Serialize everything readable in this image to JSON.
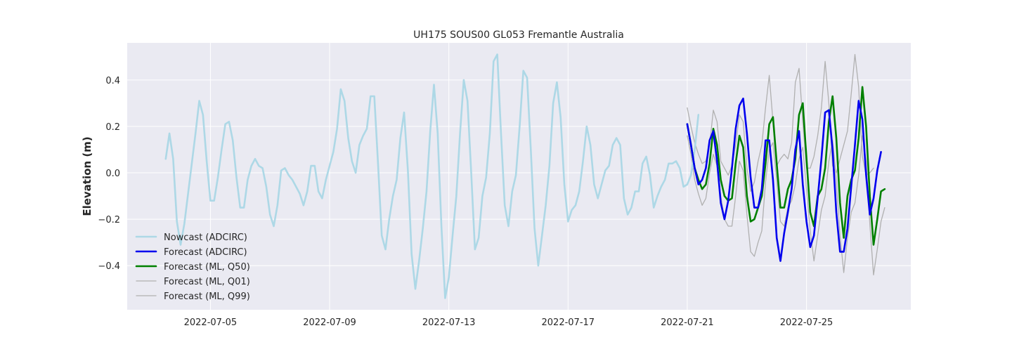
{
  "chart_data": {
    "type": "line",
    "title": "UH175 SOUS00 GL053 Fremantle Australia",
    "xlabel": "",
    "ylabel": "Elevation (m)",
    "xlim": [
      "2022-07-02T05:00",
      "2022-07-28T12:00"
    ],
    "ylim": [
      -0.59,
      0.56
    ],
    "x_ticks": [
      "2022-07-05",
      "2022-07-09",
      "2022-07-13",
      "2022-07-17",
      "2022-07-21",
      "2022-07-25"
    ],
    "y_ticks": [
      -0.4,
      -0.2,
      0.0,
      0.2,
      0.4
    ],
    "y_tick_labels": [
      "−0.4",
      "−0.2",
      "0.0",
      "0.2",
      "0.4"
    ],
    "grid": true,
    "legend_position": "lower-left",
    "colors": {
      "background": "#eaeaf2",
      "grid": "#ffffff",
      "nowcast": "#add8e6",
      "forecast_adcirc": "#0000ee",
      "forecast_q50": "#008000",
      "forecast_q01": "#b0b0b0",
      "forecast_q99": "#b0b0b0"
    },
    "series": [
      {
        "name": "Nowcast (ADCIRC)",
        "key": "nowcast",
        "start": "2022-07-03T12:00",
        "step_hours": 3,
        "width": 2.6,
        "values": [
          0.06,
          0.17,
          0.06,
          -0.21,
          -0.31,
          -0.22,
          -0.09,
          0.04,
          0.17,
          0.31,
          0.25,
          0.05,
          -0.12,
          -0.12,
          -0.02,
          0.1,
          0.21,
          0.22,
          0.14,
          -0.02,
          -0.15,
          -0.15,
          -0.03,
          0.03,
          0.06,
          0.03,
          0.02,
          -0.06,
          -0.18,
          -0.23,
          -0.14,
          0.01,
          0.02,
          -0.01,
          -0.03,
          -0.06,
          -0.09,
          -0.14,
          -0.08,
          0.03,
          0.03,
          -0.08,
          -0.11,
          -0.03,
          0.03,
          0.09,
          0.19,
          0.36,
          0.31,
          0.15,
          0.05,
          0.0,
          0.12,
          0.16,
          0.19,
          0.33,
          0.33,
          0.04,
          -0.27,
          -0.33,
          -0.2,
          -0.1,
          -0.03,
          0.15,
          0.26,
          0.01,
          -0.35,
          -0.5,
          -0.38,
          -0.24,
          -0.08,
          0.18,
          0.38,
          0.17,
          -0.23,
          -0.54,
          -0.45,
          -0.27,
          -0.1,
          0.17,
          0.4,
          0.31,
          0.0,
          -0.33,
          -0.28,
          -0.1,
          -0.02,
          0.17,
          0.48,
          0.51,
          0.17,
          -0.14,
          -0.23,
          -0.08,
          -0.01,
          0.2,
          0.44,
          0.41,
          0.1,
          -0.24,
          -0.4,
          -0.27,
          -0.14,
          0.03,
          0.3,
          0.39,
          0.24,
          -0.05,
          -0.21,
          -0.16,
          -0.14,
          -0.08,
          0.05,
          0.2,
          0.12,
          -0.05,
          -0.11,
          -0.05,
          0.01,
          0.03,
          0.12,
          0.15,
          0.12,
          -0.11,
          -0.18,
          -0.15,
          -0.08,
          -0.08,
          0.04,
          0.07,
          -0.01,
          -0.15,
          -0.1,
          -0.06,
          -0.03,
          0.04,
          0.04,
          0.05,
          0.02,
          -0.06,
          -0.05,
          -0.01,
          0.1,
          0.25
        ]
      },
      {
        "name": "Forecast (ADCIRC)",
        "key": "forecast_adcirc",
        "start": "2022-07-21T00:00",
        "step_hours": 3,
        "width": 2.6,
        "values": [
          0.21,
          0.12,
          0.02,
          -0.05,
          -0.03,
          0.02,
          0.14,
          0.18,
          0.05,
          -0.13,
          -0.2,
          -0.12,
          0.02,
          0.19,
          0.29,
          0.32,
          0.17,
          -0.02,
          -0.15,
          -0.15,
          -0.07,
          0.14,
          0.14,
          -0.03,
          -0.28,
          -0.38,
          -0.26,
          -0.17,
          -0.07,
          0.1,
          0.18,
          -0.05,
          -0.21,
          -0.32,
          -0.27,
          -0.11,
          0.06,
          0.26,
          0.27,
          0.1,
          -0.17,
          -0.34,
          -0.34,
          -0.24,
          -0.06,
          0.12,
          0.31,
          0.23,
          -0.01,
          -0.18,
          -0.11,
          0.01,
          0.09
        ]
      },
      {
        "name": "Forecast (ML, Q50)",
        "key": "forecast_q50",
        "start": "2022-07-21T00:00",
        "step_hours": 3,
        "width": 2.6,
        "values": [
          0.21,
          0.12,
          0.02,
          -0.03,
          -0.07,
          -0.05,
          0.04,
          0.19,
          0.12,
          -0.03,
          -0.1,
          -0.12,
          -0.11,
          0.04,
          0.16,
          0.11,
          -0.1,
          -0.21,
          -0.2,
          -0.15,
          -0.1,
          0.04,
          0.21,
          0.24,
          0.04,
          -0.15,
          -0.15,
          -0.07,
          -0.03,
          0.06,
          0.25,
          0.3,
          0.06,
          -0.17,
          -0.23,
          -0.1,
          -0.07,
          0.02,
          0.22,
          0.33,
          0.15,
          -0.13,
          -0.28,
          -0.1,
          -0.03,
          0.01,
          0.15,
          0.37,
          0.2,
          -0.1,
          -0.31,
          -0.2,
          -0.08,
          -0.07
        ]
      },
      {
        "name": "Forecast (ML, Q01)",
        "key": "forecast_q01",
        "start": "2022-07-21T00:00",
        "step_hours": 3,
        "width": 1.3,
        "values": [
          0.16,
          0.08,
          -0.03,
          -0.09,
          -0.14,
          -0.11,
          0.0,
          0.08,
          0.03,
          -0.1,
          -0.2,
          -0.23,
          -0.23,
          -0.1,
          0.05,
          0.01,
          -0.18,
          -0.34,
          -0.36,
          -0.3,
          -0.25,
          -0.04,
          0.1,
          0.13,
          -0.03,
          -0.21,
          -0.23,
          -0.15,
          -0.12,
          -0.05,
          0.06,
          0.11,
          -0.07,
          -0.25,
          -0.38,
          -0.27,
          -0.16,
          -0.1,
          0.05,
          0.14,
          -0.03,
          -0.27,
          -0.43,
          -0.28,
          -0.17,
          -0.13,
          -0.01,
          0.16,
          0.05,
          -0.22,
          -0.44,
          -0.33,
          -0.21,
          -0.15
        ]
      },
      {
        "name": "Forecast (ML, Q99)",
        "key": "forecast_q99",
        "start": "2022-07-21T00:00",
        "step_hours": 3,
        "width": 1.3,
        "values": [
          0.28,
          0.2,
          0.13,
          0.08,
          0.04,
          0.05,
          0.12,
          0.27,
          0.22,
          0.05,
          0.02,
          -0.01,
          0.03,
          0.12,
          0.25,
          0.22,
          0.02,
          -0.08,
          -0.04,
          0.05,
          0.12,
          0.28,
          0.42,
          0.22,
          0.03,
          0.06,
          0.08,
          0.06,
          0.13,
          0.39,
          0.45,
          0.22,
          0.02,
          0.02,
          0.07,
          0.16,
          0.28,
          0.48,
          0.3,
          0.03,
          0.0,
          0.06,
          0.12,
          0.18,
          0.34,
          0.51,
          0.37,
          0.07,
          -0.01,
          0.0,
          0.02
        ]
      }
    ]
  }
}
